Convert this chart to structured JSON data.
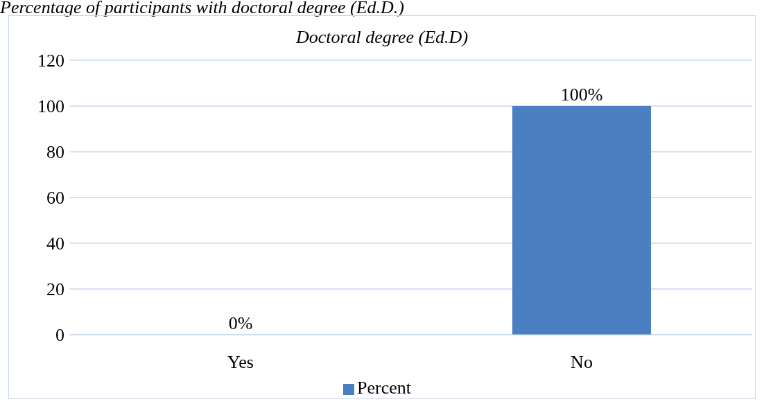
{
  "chart_data": {
    "type": "bar",
    "title": "Doctoral degree (Ed.D)",
    "annotations": [
      "Percentage of participants with doctoral degree (Ed.D.)"
    ],
    "categories": [
      "Yes",
      "No"
    ],
    "series": [
      {
        "name": "Percent",
        "color": "#4a7fc1",
        "values": [
          0,
          100
        ],
        "value_labels": [
          "0%",
          "100%"
        ]
      }
    ],
    "ylim": [
      0,
      120
    ],
    "yticks": [
      0,
      20,
      40,
      60,
      80,
      100,
      120
    ],
    "grid": "y",
    "legend": "bottom"
  }
}
